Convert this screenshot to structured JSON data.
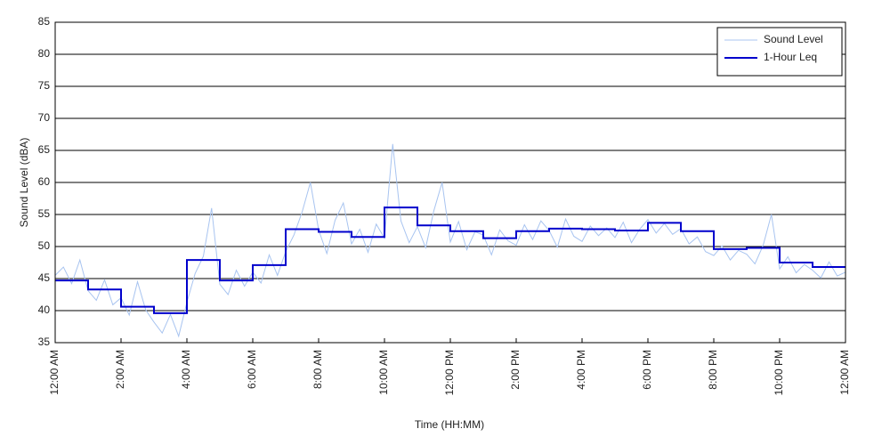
{
  "chart_data": {
    "type": "line",
    "xlabel": "Time (HH:MM)",
    "ylabel": "Sound Level (dBA)",
    "xlim": [
      0,
      24
    ],
    "ylim": [
      35,
      85
    ],
    "xticks": [
      {
        "value": 0,
        "label": "12:00 AM"
      },
      {
        "value": 2,
        "label": "2:00 AM"
      },
      {
        "value": 4,
        "label": "4:00 AM"
      },
      {
        "value": 6,
        "label": "6:00 AM"
      },
      {
        "value": 8,
        "label": "8:00 AM"
      },
      {
        "value": 10,
        "label": "10:00 AM"
      },
      {
        "value": 12,
        "label": "12:00 PM"
      },
      {
        "value": 14,
        "label": "2:00 PM"
      },
      {
        "value": 16,
        "label": "4:00 PM"
      },
      {
        "value": 18,
        "label": "6:00 PM"
      },
      {
        "value": 20,
        "label": "8:00 PM"
      },
      {
        "value": 22,
        "label": "10:00 PM"
      },
      {
        "value": 24,
        "label": "12:00 AM"
      }
    ],
    "yticks": [
      35,
      40,
      45,
      50,
      55,
      60,
      65,
      70,
      75,
      80,
      85
    ],
    "grid": true,
    "legend": "upper right",
    "series": [
      {
        "name": "Sound Level",
        "color": "#a8c4f0",
        "step": false,
        "x": [
          0,
          0.25,
          0.5,
          0.75,
          1,
          1.25,
          1.5,
          1.75,
          2,
          2.25,
          2.5,
          2.75,
          3,
          3.25,
          3.5,
          3.75,
          4,
          4.25,
          4.5,
          4.75,
          5,
          5.25,
          5.5,
          5.75,
          6,
          6.25,
          6.5,
          6.75,
          7,
          7.25,
          7.5,
          7.75,
          8,
          8.25,
          8.5,
          8.75,
          9,
          9.25,
          9.5,
          9.75,
          10,
          10.25,
          10.5,
          10.75,
          11,
          11.25,
          11.5,
          11.75,
          12,
          12.25,
          12.5,
          12.75,
          13,
          13.25,
          13.5,
          13.75,
          14,
          14.25,
          14.5,
          14.75,
          15,
          15.25,
          15.5,
          15.75,
          16,
          16.25,
          16.5,
          16.75,
          17,
          17.25,
          17.5,
          17.75,
          18,
          18.25,
          18.5,
          18.75,
          19,
          19.25,
          19.5,
          19.75,
          20,
          20.25,
          20.5,
          20.75,
          21,
          21.25,
          21.5,
          21.75,
          22,
          22.25,
          22.5,
          22.75,
          23,
          23.25,
          23.5,
          23.75,
          24
        ],
        "values": [
          45.5,
          46.8,
          44.2,
          47.9,
          43.1,
          41.6,
          44.8,
          40.9,
          42.0,
          39.3,
          44.5,
          40.1,
          38.2,
          36.5,
          39.4,
          36.0,
          41.3,
          45.8,
          48.5,
          56.0,
          44.1,
          42.5,
          46.3,
          43.8,
          46.0,
          44.3,
          48.7,
          45.5,
          49.2,
          51.8,
          55.4,
          60.0,
          52.6,
          48.9,
          54.1,
          56.8,
          50.4,
          52.7,
          49.1,
          53.5,
          51.3,
          66.0,
          54.0,
          50.6,
          53.1,
          49.8,
          55.6,
          60.0,
          50.7,
          53.9,
          49.5,
          52.3,
          51.8,
          48.7,
          52.6,
          50.9,
          50.2,
          53.4,
          51.1,
          54.0,
          52.5,
          49.9,
          54.3,
          51.6,
          50.8,
          53.2,
          51.7,
          52.9,
          51.4,
          53.8,
          50.6,
          52.7,
          54.2,
          52.1,
          53.6,
          51.9,
          52.8,
          50.4,
          51.5,
          49.2,
          48.6,
          50.1,
          47.9,
          49.4,
          48.8,
          47.3,
          50.2,
          55.0,
          46.5,
          48.4,
          45.9,
          47.2,
          46.3,
          45.1,
          47.6,
          45.4,
          46.0
        ]
      },
      {
        "name": "1-Hour Leq",
        "color": "#0000cc",
        "step": true,
        "x": [
          0,
          1,
          2,
          3,
          4,
          5,
          6,
          7,
          8,
          9,
          10,
          11,
          12,
          13,
          14,
          15,
          16,
          17,
          18,
          19,
          20,
          21,
          22,
          23
        ],
        "values": [
          44.7,
          43.3,
          40.6,
          39.6,
          47.9,
          44.7,
          47.1,
          52.7,
          52.3,
          51.5,
          56.1,
          53.3,
          52.4,
          51.3,
          52.4,
          52.8,
          52.7,
          52.5,
          53.7,
          52.4,
          49.6,
          49.8,
          47.5,
          46.8
        ]
      }
    ]
  }
}
